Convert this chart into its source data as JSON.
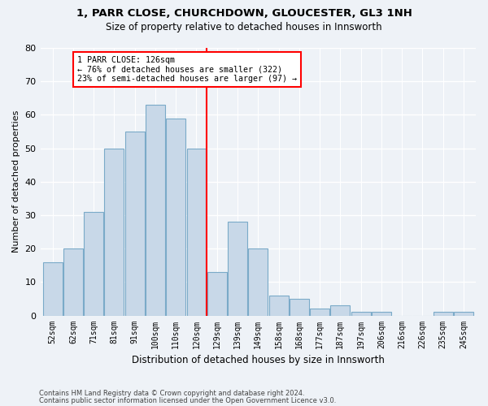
{
  "title1": "1, PARR CLOSE, CHURCHDOWN, GLOUCESTER, GL3 1NH",
  "title2": "Size of property relative to detached houses in Innsworth",
  "xlabel": "Distribution of detached houses by size in Innsworth",
  "ylabel": "Number of detached properties",
  "categories": [
    "52sqm",
    "62sqm",
    "71sqm",
    "81sqm",
    "91sqm",
    "100sqm",
    "110sqm",
    "120sqm",
    "129sqm",
    "139sqm",
    "149sqm",
    "158sqm",
    "168sqm",
    "177sqm",
    "187sqm",
    "197sqm",
    "206sqm",
    "216sqm",
    "226sqm",
    "235sqm",
    "245sqm"
  ],
  "values": [
    16,
    20,
    31,
    50,
    55,
    63,
    59,
    50,
    13,
    28,
    20,
    6,
    5,
    2,
    3,
    1,
    1,
    0,
    0,
    1,
    1
  ],
  "bar_color": "#c8d8e8",
  "bar_edge_color": "#7aaac8",
  "background_color": "#eef2f7",
  "red_line_x": 7.5,
  "annotation_text": "1 PARR CLOSE: 126sqm\n← 76% of detached houses are smaller (322)\n23% of semi-detached houses are larger (97) →",
  "footer1": "Contains HM Land Registry data © Crown copyright and database right 2024.",
  "footer2": "Contains public sector information licensed under the Open Government Licence v3.0.",
  "ylim": [
    0,
    80
  ],
  "yticks": [
    0,
    10,
    20,
    30,
    40,
    50,
    60,
    70,
    80
  ]
}
